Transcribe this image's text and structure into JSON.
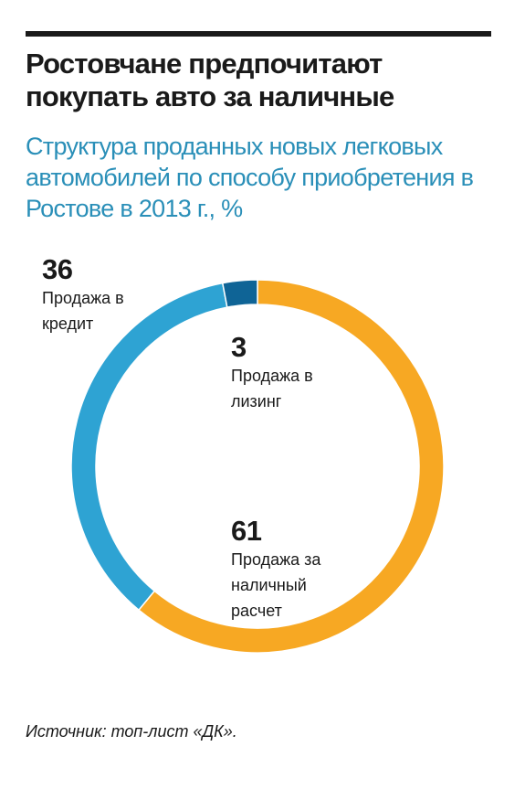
{
  "title": "Ростовчане предпочитают покупать авто за наличные",
  "subtitle": "Структура проданных новых легковых автомобилей по способу приобретения в Ростове в 2013 г., %",
  "source": "Источник: топ-лист «ДК».",
  "colors": {
    "cash": "#f7a823",
    "credit": "#2ea3d3",
    "leasing": "#0f6496",
    "title": "#1a1a1a",
    "subtitle": "#2a8fb8"
  },
  "chart_data": {
    "type": "pie",
    "style": "donut",
    "unit": "%",
    "slices": [
      {
        "label": "Продажа за наличный расчет",
        "value": 61,
        "color": "#f7a823"
      },
      {
        "label": "Продажа в кредит",
        "value": 36,
        "color": "#2ea3d3"
      },
      {
        "label": "Продажа в лизинг",
        "value": 3,
        "color": "#0f6496"
      }
    ],
    "labels": {
      "credit": {
        "value": "36",
        "name": "Продажа в кредит"
      },
      "leasing": {
        "value": "3",
        "name": "Продажа в лизинг"
      },
      "cash": {
        "value": "61",
        "name": "Продажа за наличный расчет"
      }
    }
  }
}
